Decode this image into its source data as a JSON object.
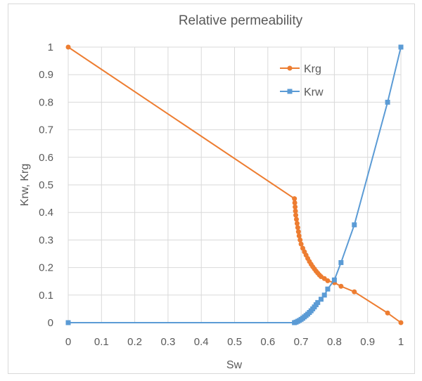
{
  "chart_data": {
    "type": "line",
    "title": "Relative permeability",
    "xlabel": "Sw",
    "ylabel": "Krw, Krg",
    "xlim": [
      0,
      1
    ],
    "ylim": [
      0,
      1
    ],
    "xticks": [
      "0",
      "0.1",
      "0.2",
      "0.3",
      "0.4",
      "0.5",
      "0.6",
      "0.7",
      "0.8",
      "0.9",
      "1"
    ],
    "yticks": [
      "0",
      "0.1",
      "0.2",
      "0.3",
      "0.4",
      "0.5",
      "0.6",
      "0.7",
      "0.8",
      "0.9",
      "1"
    ],
    "grid": true,
    "legend_position": "top-right",
    "series": [
      {
        "name": "Krg",
        "color": "#ed7d31",
        "marker": "circle",
        "x": [
          0,
          0.68,
          0.681,
          0.682,
          0.683,
          0.684,
          0.686,
          0.688,
          0.69,
          0.692,
          0.694,
          0.697,
          0.7,
          0.705,
          0.71,
          0.715,
          0.72,
          0.725,
          0.73,
          0.735,
          0.74,
          0.745,
          0.75,
          0.755,
          0.76,
          0.77,
          0.78,
          0.8,
          0.82,
          0.86,
          0.96,
          1.0
        ],
        "y": [
          1,
          0.45,
          0.435,
          0.42,
          0.405,
          0.39,
          0.375,
          0.36,
          0.345,
          0.33,
          0.315,
          0.3,
          0.285,
          0.27,
          0.257,
          0.245,
          0.233,
          0.222,
          0.212,
          0.203,
          0.195,
          0.187,
          0.18,
          0.173,
          0.167,
          0.16,
          0.152,
          0.145,
          0.132,
          0.112,
          0.035,
          0
        ]
      },
      {
        "name": "Krw",
        "color": "#5b9bd5",
        "marker": "square",
        "x": [
          0,
          0.68,
          0.685,
          0.69,
          0.695,
          0.7,
          0.705,
          0.71,
          0.715,
          0.72,
          0.725,
          0.73,
          0.735,
          0.74,
          0.745,
          0.75,
          0.76,
          0.77,
          0.78,
          0.8,
          0.82,
          0.86,
          0.96,
          1.0
        ],
        "y": [
          0,
          0,
          0.002,
          0.005,
          0.008,
          0.012,
          0.016,
          0.021,
          0.026,
          0.031,
          0.037,
          0.043,
          0.05,
          0.057,
          0.065,
          0.073,
          0.085,
          0.1,
          0.122,
          0.155,
          0.218,
          0.355,
          0.8,
          1.0
        ]
      }
    ]
  }
}
